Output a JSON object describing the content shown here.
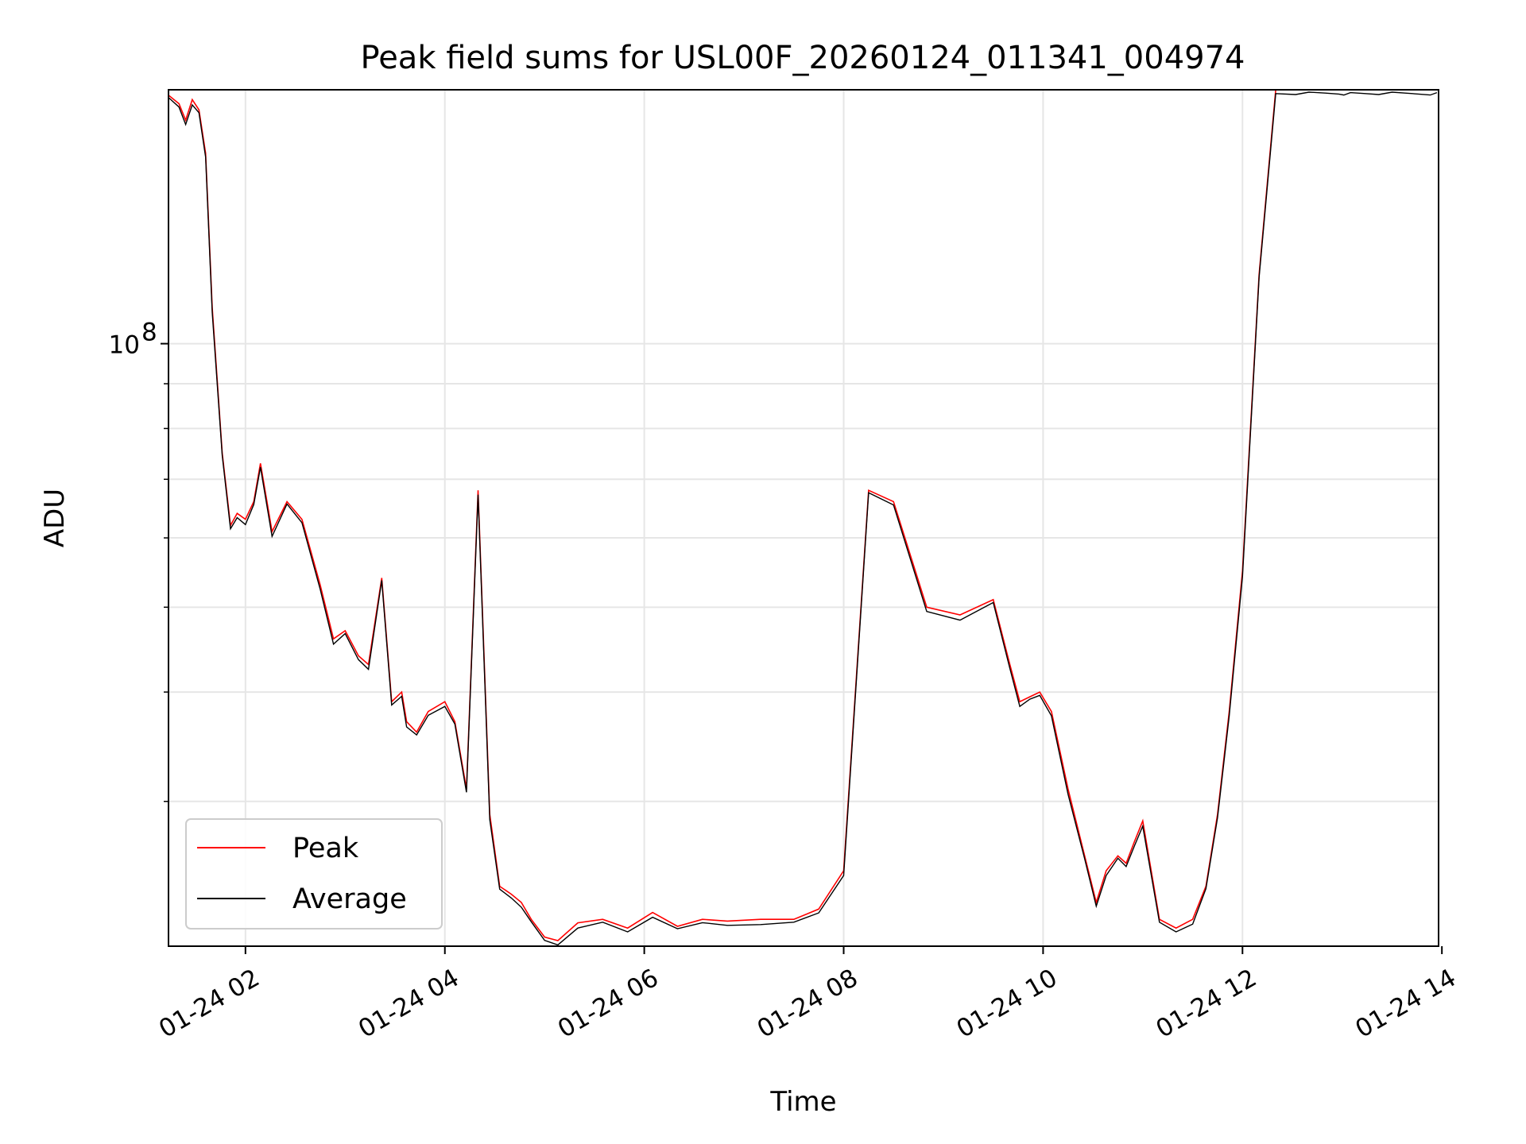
{
  "chart_data": {
    "type": "line",
    "title": "Peak field sums for USL00F_20260124_011341_004974",
    "xlabel": "Time",
    "ylabel": "ADU",
    "yscale": "log",
    "xlim": [
      "2026-01-24 01:13:41",
      "2026-01-24 13:58:00"
    ],
    "ylim": [
      20500000,
      195000000
    ],
    "grid": true,
    "legend": "lower-left",
    "x_ticks": [
      {
        "value": "2026-01-24 02:00",
        "label": "01-24 02"
      },
      {
        "value": "2026-01-24 04:00",
        "label": "01-24 04"
      },
      {
        "value": "2026-01-24 06:00",
        "label": "01-24 06"
      },
      {
        "value": "2026-01-24 08:00",
        "label": "01-24 08"
      },
      {
        "value": "2026-01-24 10:00",
        "label": "01-24 10"
      },
      {
        "value": "2026-01-24 12:00",
        "label": "01-24 12"
      },
      {
        "value": "2026-01-24 14:00",
        "label": "01-24 14"
      }
    ],
    "y_major_ticks": [
      {
        "value": 100000000,
        "label": "10",
        "exponent": "8"
      }
    ],
    "y_minor_ticks": [
      30000000,
      40000000,
      50000000,
      60000000,
      70000000,
      80000000,
      90000000,
      200000000
    ],
    "series": [
      {
        "name": "Peak",
        "color": "#ff0000",
        "x": [
          "2026-01-24 01:14",
          "2026-01-24 01:20",
          "2026-01-24 01:24",
          "2026-01-24 01:28",
          "2026-01-24 01:32",
          "2026-01-24 01:36",
          "2026-01-24 01:40",
          "2026-01-24 01:46",
          "2026-01-24 01:51",
          "2026-01-24 01:55",
          "2026-01-24 02:00",
          "2026-01-24 02:05",
          "2026-01-24 02:09",
          "2026-01-24 02:16",
          "2026-01-24 02:25",
          "2026-01-24 02:34",
          "2026-01-24 02:45",
          "2026-01-24 02:53",
          "2026-01-24 03:00",
          "03:08",
          "2026-01-24 03:14",
          "2026-01-24 03:22",
          "2026-01-24 03:28",
          "2026-01-24 03:34",
          "2026-01-24 03:37",
          "2026-01-24 03:43",
          "2026-01-24 03:50",
          "2026-01-24 04:00",
          "2026-01-24 04:06",
          "2026-01-24 04:13",
          "2026-01-24 04:20",
          "2026-01-24 04:27",
          "2026-01-24 04:33",
          "2026-01-24 04:40",
          "2026-01-24 04:46",
          "2026-01-24 04:52",
          "2026-01-24 05:00",
          "2026-01-24 05:08",
          "2026-01-24 05:20",
          "2026-01-24 05:35",
          "2026-01-24 05:50",
          "2026-01-24 06:05",
          "2026-01-24 06:20",
          "2026-01-24 06:35",
          "2026-01-24 06:50",
          "2026-01-24 07:10",
          "2026-01-24 07:30",
          "2026-01-24 07:45",
          "2026-01-24 08:00",
          "2026-01-24 08:15",
          "2026-01-24 08:30",
          "2026-01-24 08:50",
          "2026-01-24 09:10",
          "2026-01-24 09:30",
          "2026-01-24 09:40",
          "2026-01-24 09:46",
          "2026-01-24 09:52",
          "2026-01-24 09:58",
          "2026-01-24 10:05",
          "2026-01-24 10:15",
          "2026-01-24 10:25",
          "2026-01-24 10:32",
          "2026-01-24 10:38",
          "2026-01-24 10:45",
          "2026-01-24 10:50",
          "2026-01-24 10:55",
          "2026-01-24 11:00",
          "2026-01-24 11:10",
          "2026-01-24 11:20",
          "2026-01-24 11:30",
          "2026-01-24 11:38",
          "2026-01-24 11:45",
          "2026-01-24 11:52",
          "2026-01-24 12:00",
          "2026-01-24 12:10",
          "2026-01-24 12:20",
          "2026-01-24 12:32",
          "2026-01-24 12:40",
          "2026-01-24 12:50",
          "2026-01-24 12:58",
          "2026-01-24 13:01",
          "2026-01-24 13:05",
          "2026-01-24 13:14",
          "2026-01-24 13:22",
          "2026-01-24 13:30",
          "2026-01-24 13:38",
          "2026-01-24 13:46",
          "2026-01-24 13:53",
          "2026-01-24 13:57"
        ],
        "values": [
          192000000,
          188000000,
          180000000,
          190000000,
          185000000,
          165000000,
          110000000,
          75000000,
          62000000,
          64000000,
          63000000,
          66000000,
          73000000,
          61000000,
          66000000,
          63000000,
          53000000,
          46000000,
          47000000,
          44000000,
          43000000,
          54000000,
          39000000,
          40000000,
          37000000,
          36000000,
          38000000,
          39000000,
          37000000,
          31000000,
          68000000,
          29000000,
          24000000,
          23500000,
          23000000,
          22000000,
          21000000,
          20800000,
          21800000,
          22000000,
          21500000,
          22400000,
          21600000,
          22000000,
          21900000,
          22000000,
          22000000,
          22600000,
          25000000,
          68000000,
          66000000,
          50000000,
          49000000,
          51000000,
          43000000,
          39000000,
          39500000,
          40000000,
          38000000,
          31000000,
          26000000,
          23000000,
          25000000,
          26000000,
          25500000,
          27000000,
          28500000,
          22000000,
          21500000,
          22000000,
          24000000,
          29000000,
          38000000,
          55000000,
          120000000,
          195000000,
          200000000,
          200000000,
          200000000,
          200000000,
          200000000,
          200000000,
          200000000,
          200000000,
          200000000,
          200000000,
          200000000,
          200000000,
          200000000
        ]
      },
      {
        "name": "Average",
        "color": "#000000"
      }
    ]
  }
}
